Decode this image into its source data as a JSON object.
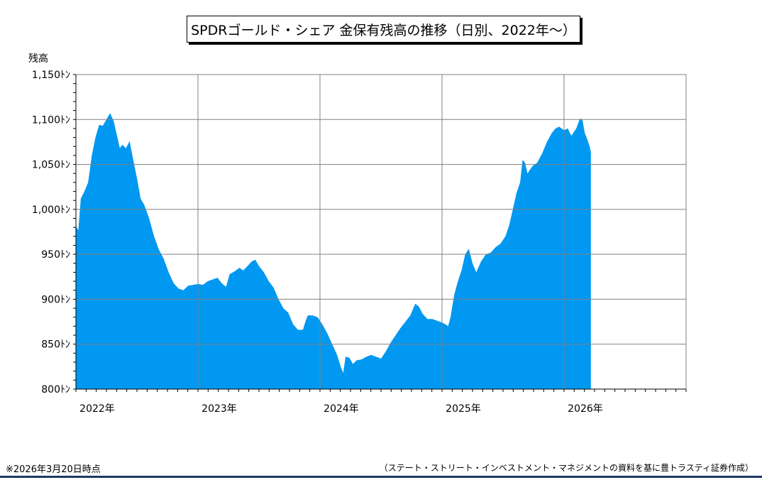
{
  "footnote": "※2026年3月20日時点",
  "source": "（ステート・ストリート・インベストメント・マネジメントの資料を基に豊トラスティ証券作成）",
  "colors": {
    "area": "#0098f0",
    "grid": "#808080",
    "axis": "#000000",
    "rule": "#1f3864"
  },
  "chart_data": {
    "type": "area",
    "title": "SPDRゴールド・シェア 金保有残高の推移（日別、2022年～）",
    "ylabel": "残高",
    "xlabel": "",
    "ylim": [
      800,
      1150
    ],
    "xlim": [
      2022.0,
      2027.0
    ],
    "yticks": [
      800,
      850,
      900,
      950,
      1000,
      1050,
      1100,
      1150
    ],
    "ytick_labels": [
      "800ﾄﾝ",
      "850ﾄﾝ",
      "900ﾄﾝ",
      "950ﾄﾝ",
      "1,000ﾄﾝ",
      "1,050ﾄﾝ",
      "1,100ﾄﾝ",
      "1,150ﾄﾝ"
    ],
    "xticks": [
      2022,
      2023,
      2024,
      2025,
      2026
    ],
    "xtick_labels": [
      "2022年",
      "2023年",
      "2024年",
      "2025年",
      "2026年"
    ],
    "grid": true,
    "series": [
      {
        "values": [
          [
            2022.0,
            981
          ],
          [
            2022.02,
            977
          ],
          [
            2022.04,
            1012
          ],
          [
            2022.07,
            1020
          ],
          [
            2022.1,
            1030
          ],
          [
            2022.13,
            1060
          ],
          [
            2022.16,
            1080
          ],
          [
            2022.19,
            1094
          ],
          [
            2022.22,
            1093
          ],
          [
            2022.25,
            1100
          ],
          [
            2022.28,
            1107
          ],
          [
            2022.31,
            1098
          ],
          [
            2022.34,
            1080
          ],
          [
            2022.36,
            1068
          ],
          [
            2022.38,
            1072
          ],
          [
            2022.41,
            1068
          ],
          [
            2022.44,
            1076
          ],
          [
            2022.47,
            1055
          ],
          [
            2022.5,
            1035
          ],
          [
            2022.53,
            1012
          ],
          [
            2022.56,
            1005
          ],
          [
            2022.6,
            990
          ],
          [
            2022.64,
            970
          ],
          [
            2022.68,
            955
          ],
          [
            2022.72,
            945
          ],
          [
            2022.76,
            930
          ],
          [
            2022.8,
            918
          ],
          [
            2022.84,
            912
          ],
          [
            2022.88,
            910
          ],
          [
            2022.92,
            915
          ],
          [
            2022.96,
            916
          ],
          [
            2023.0,
            917
          ],
          [
            2023.04,
            916
          ],
          [
            2023.08,
            920
          ],
          [
            2023.12,
            922
          ],
          [
            2023.16,
            924
          ],
          [
            2023.2,
            917
          ],
          [
            2023.23,
            914
          ],
          [
            2023.26,
            928
          ],
          [
            2023.3,
            931
          ],
          [
            2023.34,
            935
          ],
          [
            2023.37,
            932
          ],
          [
            2023.4,
            936
          ],
          [
            2023.44,
            942
          ],
          [
            2023.47,
            944
          ],
          [
            2023.5,
            937
          ],
          [
            2023.54,
            930
          ],
          [
            2023.58,
            920
          ],
          [
            2023.62,
            913
          ],
          [
            2023.66,
            900
          ],
          [
            2023.7,
            890
          ],
          [
            2023.74,
            885
          ],
          [
            2023.78,
            872
          ],
          [
            2023.82,
            866
          ],
          [
            2023.86,
            866
          ],
          [
            2023.88,
            875
          ],
          [
            2023.9,
            882
          ],
          [
            2023.94,
            882
          ],
          [
            2023.98,
            880
          ],
          [
            2024.02,
            872
          ],
          [
            2024.06,
            862
          ],
          [
            2024.1,
            850
          ],
          [
            2024.14,
            838
          ],
          [
            2024.17,
            825
          ],
          [
            2024.19,
            818
          ],
          [
            2024.21,
            836
          ],
          [
            2024.24,
            835
          ],
          [
            2024.27,
            828
          ],
          [
            2024.3,
            832
          ],
          [
            2024.34,
            833
          ],
          [
            2024.38,
            836
          ],
          [
            2024.42,
            838
          ],
          [
            2024.46,
            836
          ],
          [
            2024.5,
            834
          ],
          [
            2024.54,
            842
          ],
          [
            2024.58,
            852
          ],
          [
            2024.62,
            860
          ],
          [
            2024.66,
            868
          ],
          [
            2024.7,
            875
          ],
          [
            2024.74,
            882
          ],
          [
            2024.78,
            895
          ],
          [
            2024.81,
            892
          ],
          [
            2024.84,
            884
          ],
          [
            2024.88,
            878
          ],
          [
            2024.92,
            878
          ],
          [
            2024.96,
            876
          ],
          [
            2025.0,
            874
          ],
          [
            2025.03,
            872
          ],
          [
            2025.05,
            870
          ],
          [
            2025.07,
            880
          ],
          [
            2025.1,
            905
          ],
          [
            2025.13,
            920
          ],
          [
            2025.16,
            932
          ],
          [
            2025.19,
            950
          ],
          [
            2025.22,
            956
          ],
          [
            2025.25,
            940
          ],
          [
            2025.28,
            930
          ],
          [
            2025.32,
            942
          ],
          [
            2025.36,
            950
          ],
          [
            2025.4,
            952
          ],
          [
            2025.44,
            958
          ],
          [
            2025.48,
            962
          ],
          [
            2025.52,
            970
          ],
          [
            2025.55,
            982
          ],
          [
            2025.58,
            1000
          ],
          [
            2025.61,
            1018
          ],
          [
            2025.64,
            1030
          ],
          [
            2025.66,
            1055
          ],
          [
            2025.68,
            1052
          ],
          [
            2025.7,
            1040
          ],
          [
            2025.74,
            1048
          ],
          [
            2025.78,
            1052
          ],
          [
            2025.82,
            1062
          ],
          [
            2025.86,
            1075
          ],
          [
            2025.9,
            1085
          ],
          [
            2025.93,
            1090
          ],
          [
            2025.96,
            1092
          ],
          [
            2026.0,
            1088
          ],
          [
            2026.03,
            1090
          ],
          [
            2026.06,
            1082
          ],
          [
            2026.1,
            1090
          ],
          [
            2026.13,
            1101
          ],
          [
            2026.15,
            1100
          ],
          [
            2026.17,
            1085
          ],
          [
            2026.19,
            1078
          ],
          [
            2026.21,
            1070
          ],
          [
            2026.22,
            1064
          ]
        ]
      }
    ]
  }
}
